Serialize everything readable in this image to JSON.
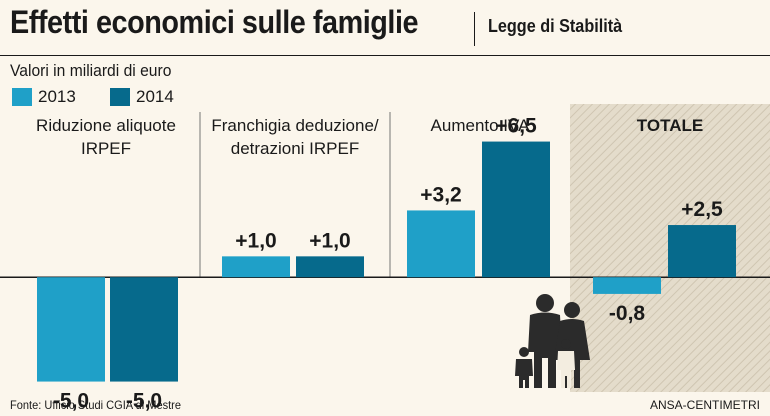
{
  "title": "Effetti economici sulle famiglie",
  "subtitle": "Legge di Stabilità",
  "units": "Valori in miliardi di euro",
  "legend": [
    {
      "label": "2013",
      "color": "#1fa0c8"
    },
    {
      "label": "2014",
      "color": "#066a8c"
    }
  ],
  "chart_data": {
    "type": "bar",
    "categories": [
      [
        "Riduzione aliquote",
        "IRPEF"
      ],
      [
        "Franchigia deduzione/",
        "detrazioni IRPEF"
      ],
      [
        "Aumento IVA"
      ],
      [
        "TOTALE"
      ]
    ],
    "series": [
      {
        "name": "2013",
        "values": [
          -5.0,
          1.0,
          3.2,
          -0.8
        ],
        "labels": [
          "-5,0",
          "+1,0",
          "+3,2",
          "-0,8"
        ]
      },
      {
        "name": "2014",
        "values": [
          -5.0,
          1.0,
          6.5,
          2.5
        ],
        "labels": [
          "-5,0",
          "+1,0",
          "+6,5",
          "+2,5"
        ]
      }
    ],
    "ylim": [
      -5.5,
      8.3
    ],
    "highlight_category": "TOTALE",
    "grid": false,
    "legend_position": "top-left"
  },
  "source": "Fonte: Ufficio Studi CGIA di Mestre",
  "credit": "ANSA-CENTIMETRI",
  "icons": {
    "family": "family-icon"
  }
}
